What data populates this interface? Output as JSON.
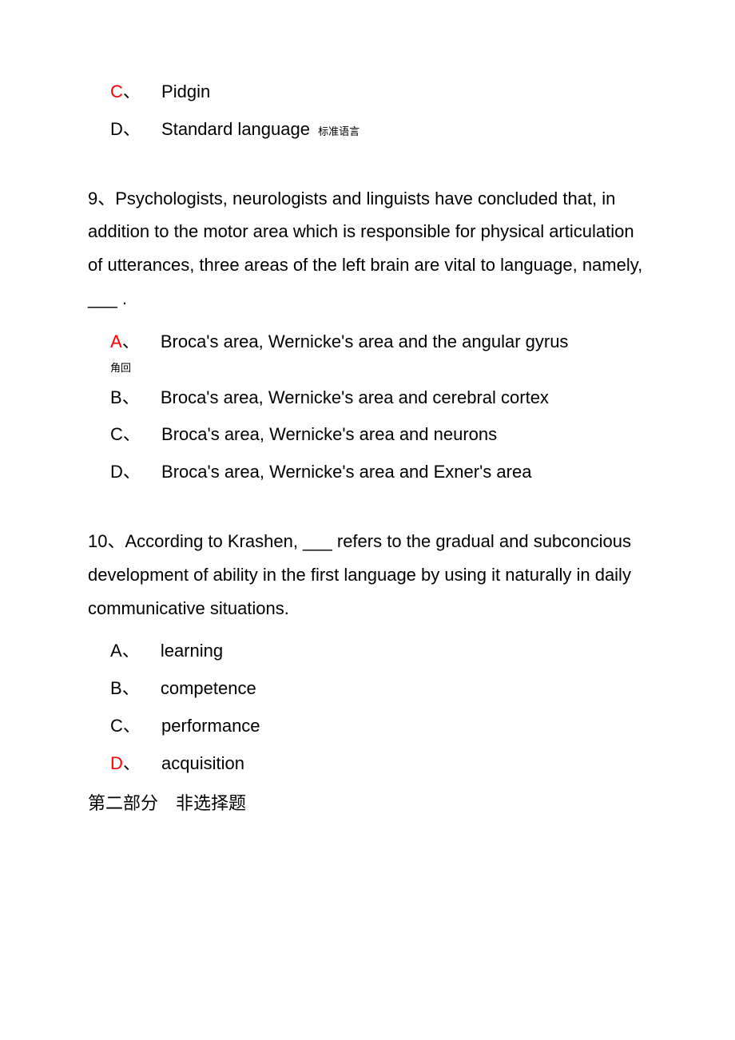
{
  "q8_trailing_options": [
    {
      "letter": "C",
      "sep": "、",
      "text": "Pidgin",
      "correct": true,
      "note": ""
    },
    {
      "letter": "D",
      "sep": "、",
      "text": "Standard language",
      "correct": false,
      "note": "标准语言"
    }
  ],
  "q9": {
    "number": "9、",
    "text": "Psychologists, neurologists and linguists have concluded that, in addition to the motor area which is responsible for physical articulation of utterances, three areas of the left brain are vital to language, namely, ___ .",
    "options": [
      {
        "letter": "A",
        "sep": "、",
        "text": "Broca's area, Wernicke's area and the angular gyrus",
        "correct": true,
        "note_below": "角回"
      },
      {
        "letter": "B",
        "sep": "、",
        "text": "Broca's area, Wernicke's area and cerebral cortex",
        "correct": false
      },
      {
        "letter": "C",
        "sep": "、",
        "text": "Broca's area, Wernicke's area and neurons",
        "correct": false
      },
      {
        "letter": "D",
        "sep": "、",
        "text": "Broca's area, Wernicke's area and Exner's area",
        "correct": false
      }
    ]
  },
  "q10": {
    "number": "10、",
    "text": "According to Krashen, ___ refers to the gradual and subconcious development of ability in the first language by using it naturally in daily communicative situations.",
    "options": [
      {
        "letter": "A",
        "sep": "、",
        "text": "learning",
        "correct": false
      },
      {
        "letter": "B",
        "sep": "、",
        "text": "competence",
        "correct": false
      },
      {
        "letter": "C",
        "sep": "、",
        "text": "performance",
        "correct": false
      },
      {
        "letter": "D",
        "sep": "、",
        "text": "acquisition",
        "correct": true
      }
    ]
  },
  "section2_header": "第二部分　非选择题",
  "colors": {
    "correct": "#ff0000",
    "text": "#000000",
    "background": "#ffffff"
  }
}
